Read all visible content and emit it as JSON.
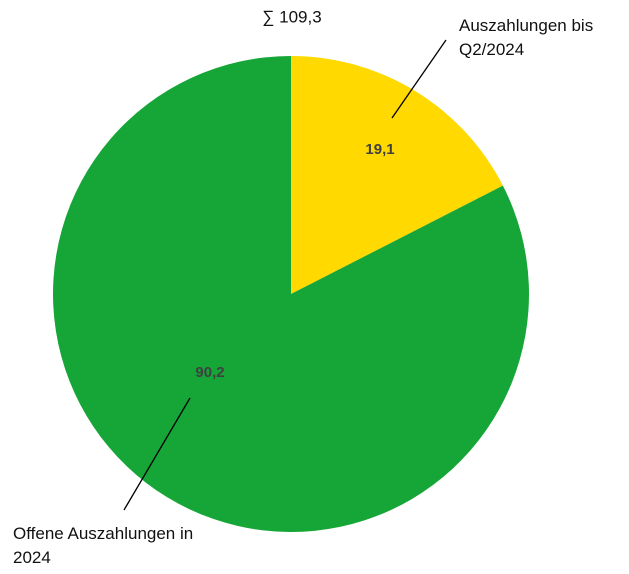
{
  "chart_data": {
    "type": "pie",
    "annotation": "∑ 109,3",
    "categories": [
      "Auszahlungen bis Q2/2024",
      "Offene Auszahlungen in 2024"
    ],
    "values": [
      19.1,
      90.2
    ],
    "value_labels": [
      "19,1",
      "90,2"
    ],
    "colors": [
      "#FFD900",
      "#16A637"
    ]
  }
}
